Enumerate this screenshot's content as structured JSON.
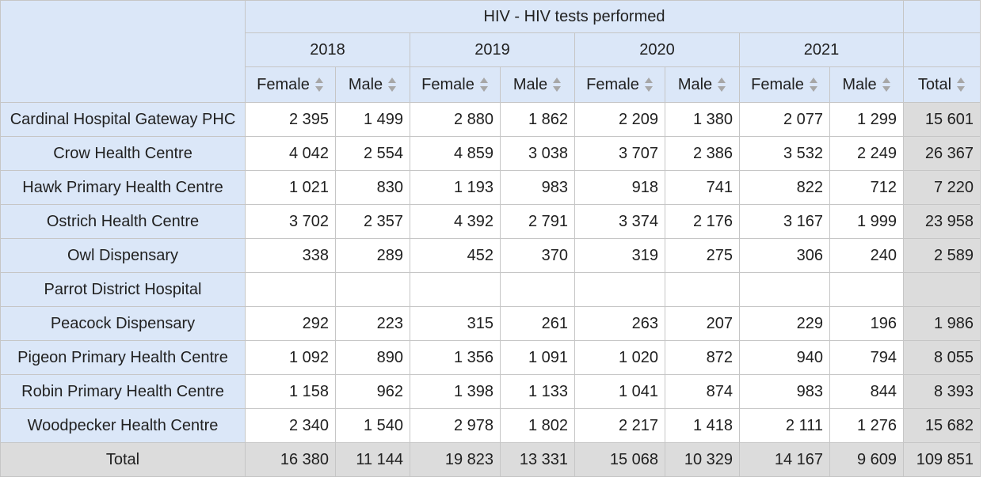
{
  "table": {
    "title": "HIV - HIV tests performed",
    "years": [
      "2018",
      "2019",
      "2020",
      "2021"
    ],
    "sex_labels": [
      "Female",
      "Male"
    ],
    "total_label": "Total",
    "colors": {
      "header_bg": "#dbe7f8",
      "total_bg": "#dcdcdc",
      "border": "#c6c6c6"
    },
    "rows": [
      {
        "name": "Cardinal Hospital Gateway PHC",
        "values": [
          "2 395",
          "1 499",
          "2 880",
          "1 862",
          "2 209",
          "1 380",
          "2 077",
          "1 299"
        ],
        "total": "15 601"
      },
      {
        "name": "Crow Health Centre",
        "values": [
          "4 042",
          "2 554",
          "4 859",
          "3 038",
          "3 707",
          "2 386",
          "3 532",
          "2 249"
        ],
        "total": "26 367"
      },
      {
        "name": "Hawk Primary Health Centre",
        "values": [
          "1 021",
          "830",
          "1 193",
          "983",
          "918",
          "741",
          "822",
          "712"
        ],
        "total": "7 220"
      },
      {
        "name": "Ostrich Health Centre",
        "values": [
          "3 702",
          "2 357",
          "4 392",
          "2 791",
          "3 374",
          "2 176",
          "3 167",
          "1 999"
        ],
        "total": "23 958"
      },
      {
        "name": "Owl Dispensary",
        "values": [
          "338",
          "289",
          "452",
          "370",
          "319",
          "275",
          "306",
          "240"
        ],
        "total": "2 589"
      },
      {
        "name": "Parrot District Hospital",
        "values": [
          "",
          "",
          "",
          "",
          "",
          "",
          "",
          ""
        ],
        "total": ""
      },
      {
        "name": "Peacock Dispensary",
        "values": [
          "292",
          "223",
          "315",
          "261",
          "263",
          "207",
          "229",
          "196"
        ],
        "total": "1 986"
      },
      {
        "name": "Pigeon Primary Health Centre",
        "values": [
          "1 092",
          "890",
          "1 356",
          "1 091",
          "1 020",
          "872",
          "940",
          "794"
        ],
        "total": "8 055"
      },
      {
        "name": "Robin Primary Health Centre",
        "values": [
          "1 158",
          "962",
          "1 398",
          "1 133",
          "1 041",
          "874",
          "983",
          "844"
        ],
        "total": "8 393"
      },
      {
        "name": "Woodpecker Health Centre",
        "values": [
          "2 340",
          "1 540",
          "2 978",
          "1 802",
          "2 217",
          "1 418",
          "2 111",
          "1 276"
        ],
        "total": "15 682"
      }
    ],
    "totals_row": {
      "label": "Total",
      "values": [
        "16 380",
        "11 144",
        "19 823",
        "13 331",
        "15 068",
        "10 329",
        "14 167",
        "9 609"
      ],
      "total": "109 851"
    }
  }
}
